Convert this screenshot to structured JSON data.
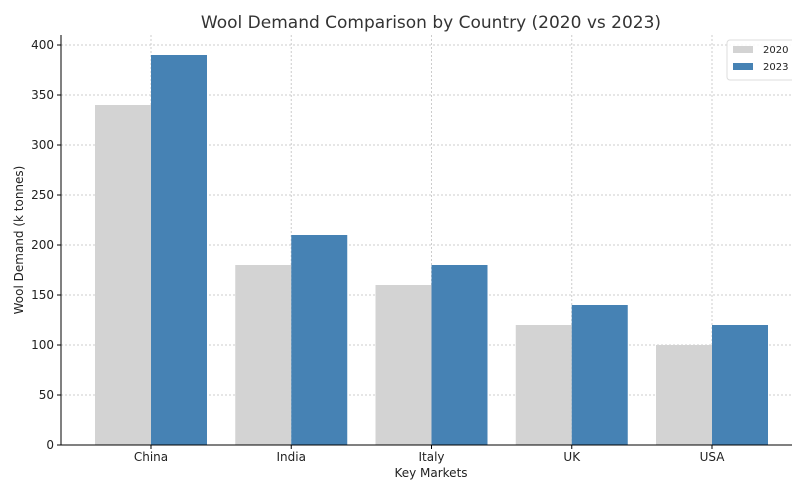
{
  "chart_data": {
    "type": "bar",
    "title": "Wool Demand Comparison by Country (2020 vs 2023)",
    "xlabel": "Key Markets",
    "ylabel": "Wool Demand (k tonnes)",
    "categories": [
      "China",
      "India",
      "Italy",
      "UK",
      "USA"
    ],
    "series": [
      {
        "name": "2020",
        "color": "#d3d3d3",
        "values": [
          340,
          180,
          160,
          120,
          100
        ]
      },
      {
        "name": "2023",
        "color": "#4682b4",
        "values": [
          390,
          210,
          180,
          140,
          120
        ]
      }
    ],
    "ylim": [
      0,
      410
    ],
    "yticks": [
      0,
      50,
      100,
      150,
      200,
      250,
      300,
      350,
      400
    ],
    "grid": true,
    "legend_position": "top-right"
  }
}
